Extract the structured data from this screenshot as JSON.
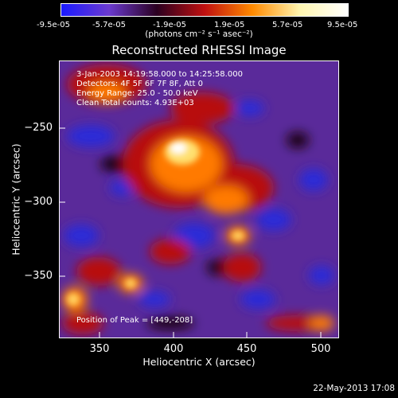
{
  "colorbar": {
    "ticks": [
      "-9.5e-05",
      "-5.7e-05",
      "-1.9e-05",
      "1.9e-05",
      "5.7e-05",
      "9.5e-05"
    ],
    "units": "(photons cm⁻² s⁻¹ asec⁻²)",
    "range": [
      -9.5e-05,
      9.5e-05
    ],
    "colors": [
      "#1a1aff",
      "#6b3acf",
      "#2a0020",
      "#c01010",
      "#ff8a00",
      "#fff6b0",
      "#ffffff"
    ]
  },
  "chart_data": {
    "type": "heatmap",
    "title": "Reconstructed RHESSI Image",
    "xlabel": "Heliocentric X (arcsec)",
    "ylabel": "Heliocentric Y (arcsec)",
    "x_ticks": [
      "350",
      "400",
      "450",
      "500"
    ],
    "y_ticks": [
      "−250",
      "−300",
      "−350"
    ],
    "xlim": [
      322,
      512
    ],
    "ylim": [
      -392,
      -204
    ],
    "annotations": {
      "time_range": "3-Jan-2003 14:19:58.000 to 14:25:58.000",
      "detectors": "Detectors: 4F 5F 6F 7F 8F, Att 0",
      "energy": "Energy Range: 25.0 - 50.0 keV",
      "clean": "Clean    Total counts: 4.93E+03",
      "peak": "Position of Peak = [449,-208]"
    },
    "peak_position": [
      449,
      -208
    ]
  },
  "footer": {
    "timestamp": "22-May-2013 17:08"
  }
}
